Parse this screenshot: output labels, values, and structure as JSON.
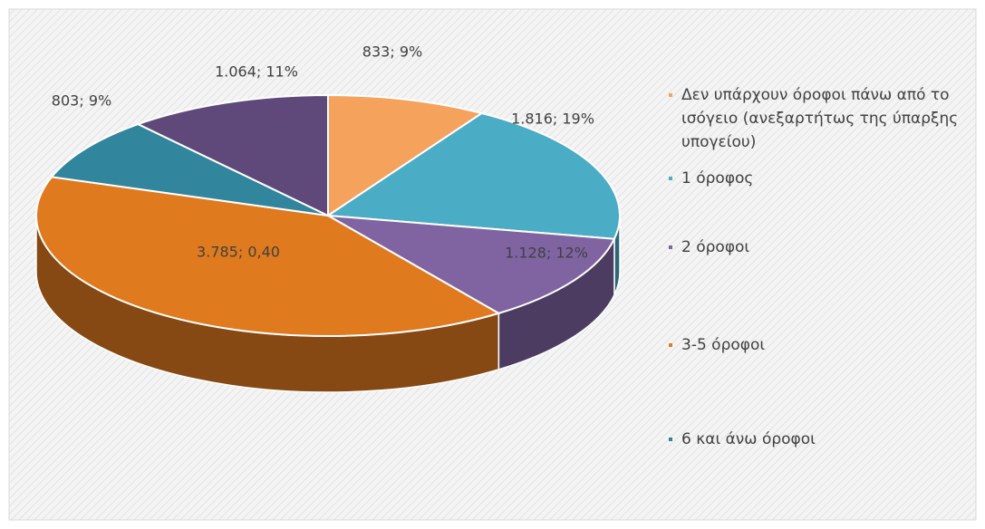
{
  "chart_data": {
    "type": "pie",
    "categories": [
      "Δεν υπάρχουν όροφοι πάνω από το ισόγειο (ανεξαρτήτως της ύπαρξης υπογείου)",
      "1 όροφος",
      "2 όροφοι",
      "3-5 όροφοι",
      "6 και άνω όροφοι",
      null
    ],
    "values": [
      833,
      1816,
      1128,
      3785,
      803,
      1064
    ],
    "value_labels": [
      "833; 9%",
      "1.816; 19%",
      "1.128; 12%",
      "3.785; 0,40",
      "803; 9%",
      "1.064; 11%"
    ],
    "colors": [
      "#f5a25d",
      "#4bacc6",
      "#8064a2",
      "#e07a1f",
      "#31859c",
      "#5f497a"
    ]
  }
}
